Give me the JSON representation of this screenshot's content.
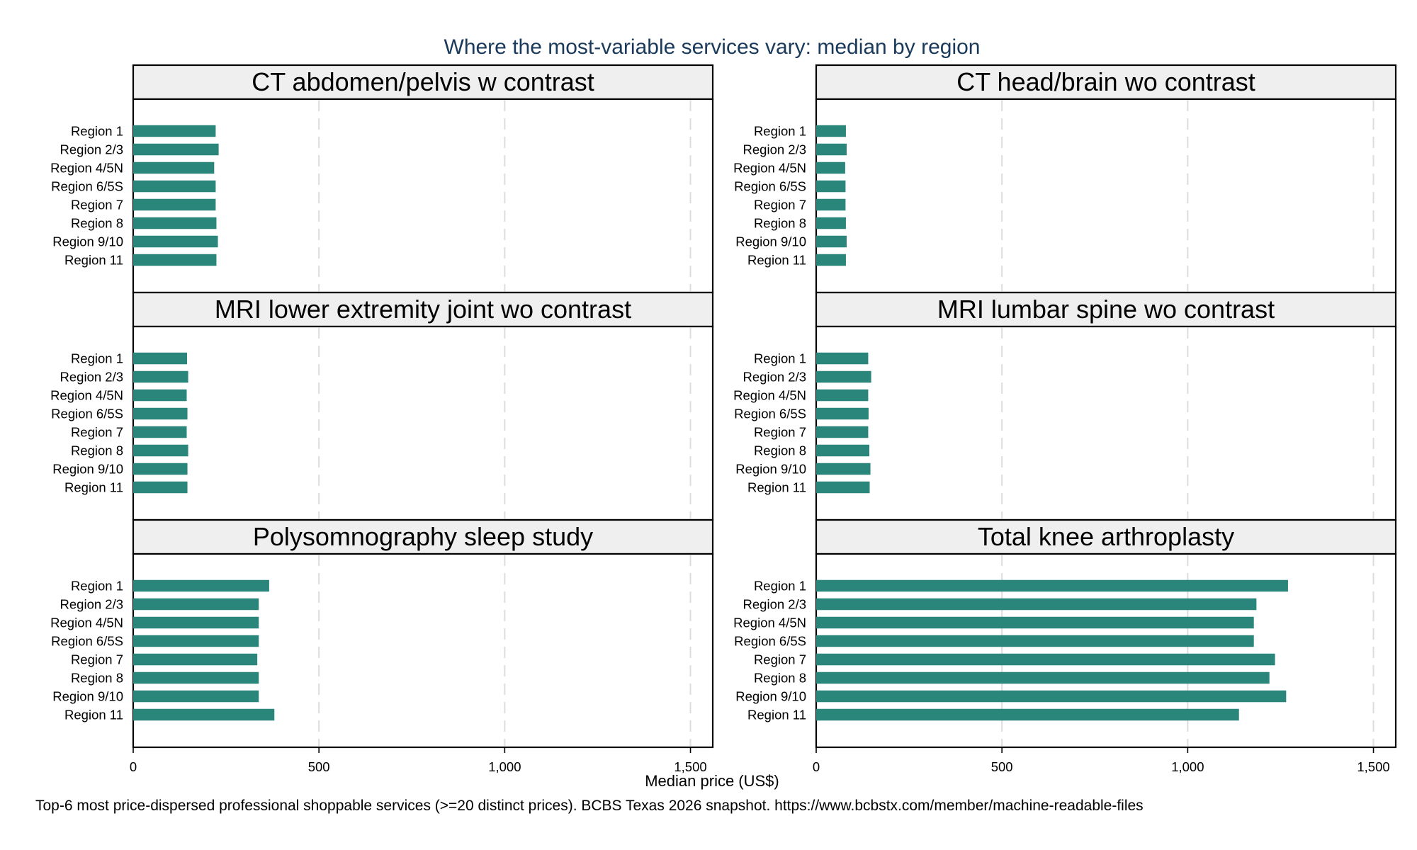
{
  "colors": {
    "bar": "#2a857a",
    "strip_background": "#efefef",
    "title": "#1a3a5c",
    "grid": "#dddddd"
  },
  "chart_data": {
    "type": "bar",
    "orientation": "horizontal",
    "title": "Where the most-variable services vary: median by region",
    "xlabel": "Median price (US$)",
    "note": "Top-6 most price-dispersed professional shoppable services (>=20 distinct prices). BCBS Texas 2026 snapshot. https://www.bcbstx.com/member/machine-readable-files",
    "xlim": [
      0,
      1560
    ],
    "xticks": [
      0,
      500,
      1000,
      1500
    ],
    "xtick_labels": [
      "0",
      "500",
      "1,000",
      "1,500"
    ],
    "grid": "vertical dashed",
    "categories": [
      "Region 1",
      "Region 2/3",
      "Region 4/5N",
      "Region 6/5S",
      "Region 7",
      "Region 8",
      "Region 9/10",
      "Region 11"
    ],
    "facets": [
      {
        "name": "CT abdomen/pelvis w contrast",
        "values": [
          222,
          230,
          218,
          222,
          222,
          224,
          228,
          224
        ]
      },
      {
        "name": "CT head/brain wo contrast",
        "values": [
          80,
          82,
          78,
          79,
          79,
          80,
          82,
          80
        ]
      },
      {
        "name": "MRI lower extremity joint wo contrast",
        "values": [
          145,
          148,
          144,
          146,
          144,
          148,
          146,
          146
        ]
      },
      {
        "name": "MRI lumbar spine wo contrast",
        "values": [
          140,
          148,
          140,
          141,
          140,
          143,
          146,
          144
        ]
      },
      {
        "name": "Polysomnography sleep study",
        "values": [
          366,
          338,
          338,
          338,
          334,
          338,
          338,
          380
        ]
      },
      {
        "name": "Total knee arthroplasty",
        "values": [
          1270,
          1185,
          1178,
          1178,
          1235,
          1220,
          1265,
          1138
        ]
      }
    ]
  }
}
